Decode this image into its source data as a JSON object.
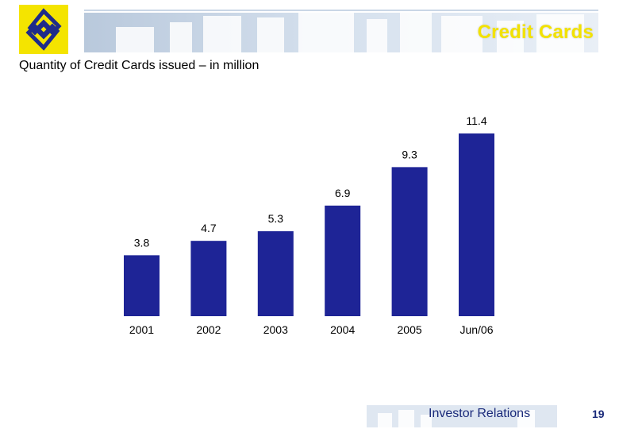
{
  "header": {
    "slide_title": "Credit Cards",
    "logo": "banco-do-brasil-logo-icon",
    "colors": {
      "logo_bg": "#f4e400",
      "logo_mark": "#1e2b8a",
      "title": "#f2e200"
    }
  },
  "chart_data": {
    "type": "bar",
    "title": "Quantity of Credit Cards issued – in million",
    "categories": [
      "2001",
      "2002",
      "2003",
      "2004",
      "2005",
      "Jun/06"
    ],
    "series": [
      {
        "values": [
          3.8,
          4.7,
          5.3,
          6.9,
          9.3,
          11.4
        ],
        "color": "#1e2496"
      }
    ],
    "data_labels": [
      "3.8",
      "4.7",
      "5.3",
      "6.9",
      "9.3",
      "11.4"
    ],
    "xlabel": "",
    "ylabel": "",
    "ylim": [
      0,
      11.4
    ],
    "grid": false,
    "legend": "none"
  },
  "footer": {
    "label": "Investor Relations",
    "page_number": "19"
  }
}
